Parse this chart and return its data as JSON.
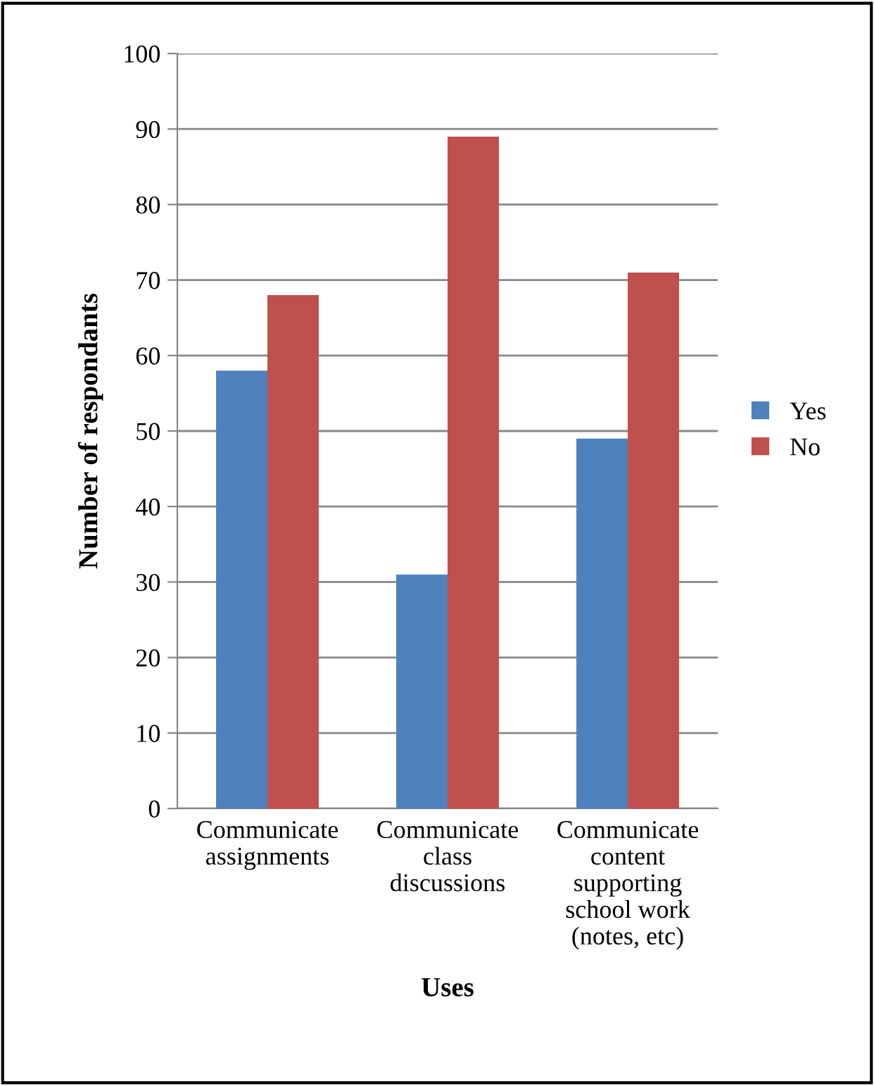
{
  "chart_data": {
    "type": "bar",
    "xlabel": "Uses",
    "ylabel": "Number of respondants",
    "categories": [
      "Communicate\nassignments",
      "Communicate\nclass\ndiscussions",
      "Communicate\ncontent\nsupporting\nschool work\n(notes, etc)"
    ],
    "series": [
      {
        "name": "Yes",
        "color": "#4f81bd",
        "values": [
          58,
          31,
          49
        ]
      },
      {
        "name": "No",
        "color": "#c0504d",
        "values": [
          68,
          89,
          71
        ]
      }
    ],
    "ylim": [
      0,
      100
    ],
    "yticks": [
      0,
      10,
      20,
      30,
      40,
      50,
      60,
      70,
      80,
      90,
      100
    ],
    "grid": "y",
    "legend": "right"
  }
}
